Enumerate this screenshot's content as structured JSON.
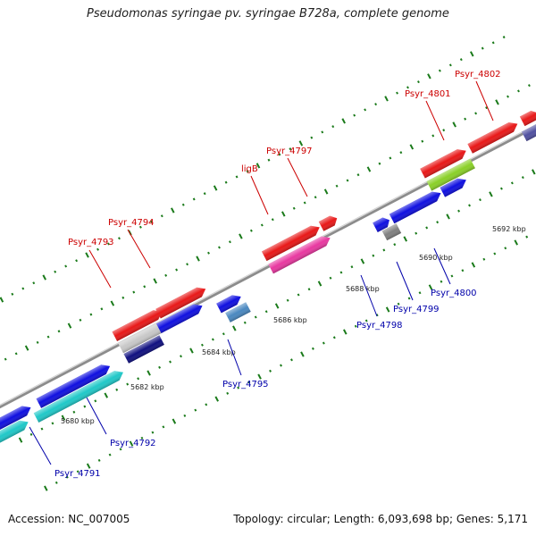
{
  "title": "Pseudomonas syringae pv. syringae B728a, complete genome",
  "footer": {
    "accession": "Accession: NC_007005",
    "summary": "Topology: circular; Length: 6,093,698 bp; Genes: 5,171"
  },
  "colors": {
    "backbone": "#8c8c8c",
    "tick": "#1a7a1a",
    "forward_label": "#cc0000",
    "reverse_label": "#0000aa"
  },
  "kbp_labels": [
    "5680 kbp",
    "5682 kbp",
    "5684 kbp",
    "5686 kbp",
    "5688 kbp",
    "5690 kbp",
    "5692 kbp"
  ],
  "forward_labels": [
    "Psyr_4793",
    "Psyr_4794",
    "ligB",
    "Psyr_4797",
    "Psyr_4801",
    "Psyr_4802"
  ],
  "reverse_labels": [
    "Psyr_4791",
    "Psyr_4792",
    "Psyr_4795",
    "Psyr_4798",
    "Psyr_4799",
    "Psyr_4800"
  ]
}
